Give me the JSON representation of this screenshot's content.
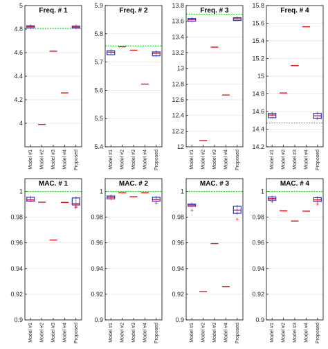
{
  "chart_data": [
    {
      "type": "box",
      "title": "Freq. # 1",
      "categories": [
        "Model #1",
        "Model #2",
        "Model #3",
        "Model #4",
        "Proposed"
      ],
      "ylim": [
        3.8,
        5
      ],
      "yticks": [
        "4",
        "4.2",
        "4.4",
        "4.6",
        "4.8",
        "5"
      ],
      "reference": 4.806,
      "series": [
        {
          "values": [
            4.822,
            3.99,
            4.612,
            4.258,
            4.818
          ],
          "box": [
            [
              4.812,
              4.828
            ],
            null,
            null,
            null,
            [
              4.81,
              4.826
            ]
          ],
          "outliers": [
            [],
            [],
            [],
            [],
            []
          ]
        }
      ],
      "grid": true
    },
    {
      "type": "box",
      "title": "Freq. # 2",
      "categories": [
        "Model #1",
        "Model #2",
        "Model #3",
        "Model #4",
        "Proposed"
      ],
      "ylim": [
        5.4,
        5.9
      ],
      "yticks": [
        "5.4",
        "5.5",
        "5.6",
        "5.7",
        "5.8",
        "5.9"
      ],
      "reference": 5.757,
      "series": [
        {
          "values": [
            5.735,
            5.754,
            5.742,
            5.622,
            5.731
          ],
          "box": [
            [
              5.726,
              5.74
            ],
            null,
            null,
            null,
            [
              5.722,
              5.736
            ]
          ],
          "outliers": [
            [],
            [],
            [],
            [],
            []
          ]
        }
      ],
      "grid": true
    },
    {
      "type": "box",
      "title": "Freq. # 3",
      "categories": [
        "Model #1",
        "Model #2",
        "Model #3",
        "Model #4",
        "Proposed"
      ],
      "ylim": [
        12,
        13.8
      ],
      "yticks": [
        "12",
        "12.2",
        "12.4",
        "12.6",
        "12.8",
        "13",
        "13.2",
        "13.4",
        "13.6",
        "13.8"
      ],
      "reference": 13.69,
      "series": [
        {
          "values": [
            13.62,
            12.08,
            13.27,
            12.66,
            13.63
          ],
          "box": [
            [
              13.6,
              13.635
            ],
            null,
            null,
            null,
            [
              13.61,
              13.645
            ]
          ],
          "outliers": [
            [],
            [],
            [],
            [],
            []
          ]
        }
      ],
      "grid": true
    },
    {
      "type": "box",
      "title": "Freq. # 4",
      "categories": [
        "Model #1",
        "Model #2",
        "Model #3",
        "Model #4",
        "Proposed"
      ],
      "ylim": [
        14.2,
        15.8
      ],
      "yticks": [
        "14.2",
        "14.4",
        "14.6",
        "14.8",
        "15",
        "15.2",
        "15.4",
        "15.6",
        "15.8"
      ],
      "reference": 14.47,
      "series": [
        {
          "values": [
            14.56,
            14.81,
            15.12,
            15.56,
            14.55
          ],
          "box": [
            [
              14.53,
              14.58
            ],
            null,
            null,
            null,
            [
              14.52,
              14.58
            ]
          ],
          "outliers": [
            [],
            [],
            [],
            [],
            []
          ]
        }
      ],
      "grid": true
    },
    {
      "type": "box",
      "title": "MAC. # 1",
      "categories": [
        "Model #1",
        "Model #2",
        "Model #3",
        "Model #4",
        "Proposed"
      ],
      "ylim": [
        0.9,
        1.01
      ],
      "yticks": [
        "0.9",
        "0.92",
        "0.94",
        "0.96",
        "0.98",
        "1"
      ],
      "reference": 1,
      "series": [
        {
          "values": [
            0.9935,
            0.9917,
            0.9622,
            0.9915,
            0.9905
          ],
          "box": [
            [
              0.9925,
              0.9955
            ],
            null,
            null,
            null,
            [
              0.9895,
              0.995
            ]
          ],
          "outliers": [
            [
              0.9935
            ],
            [],
            [],
            [],
            [
              0.9875,
              0.9882
            ]
          ]
        }
      ],
      "grid": true
    },
    {
      "type": "box",
      "title": "MAC. # 2",
      "categories": [
        "Model #1",
        "Model #2",
        "Model #3",
        "Model #4",
        "Proposed"
      ],
      "ylim": [
        0.9,
        1.01
      ],
      "yticks": [
        "0.9",
        "0.92",
        "0.94",
        "0.96",
        "0.98",
        "1"
      ],
      "reference": 1,
      "series": [
        {
          "values": [
            0.9955,
            0.999,
            0.996,
            0.999,
            0.9938
          ],
          "box": [
            [
              0.9943,
              0.9965
            ],
            null,
            null,
            null,
            [
              0.9925,
              0.9955
            ]
          ],
          "outliers": [
            [
              0.9945
            ],
            [],
            [],
            [],
            [
              0.9912
            ]
          ]
        }
      ],
      "grid": true
    },
    {
      "type": "box",
      "title": "MAC. # 3",
      "categories": [
        "Model #1",
        "Model #2",
        "Model #3",
        "Model #4",
        "Proposed"
      ],
      "ylim": [
        0.9,
        1.01
      ],
      "yticks": [
        "0.9",
        "0.92",
        "0.94",
        "0.96",
        "0.98",
        "1"
      ],
      "reference": 1,
      "series": [
        {
          "values": [
            0.9895,
            0.922,
            0.9595,
            0.926,
            0.9855
          ],
          "box": [
            [
              0.9885,
              0.9902
            ],
            null,
            null,
            null,
            [
              0.983,
              0.9885
            ]
          ],
          "outliers": [
            [
              0.9855
            ],
            [],
            [],
            [],
            [
              0.9785
            ]
          ]
        }
      ],
      "grid": true
    },
    {
      "type": "box",
      "title": "MAC. # 4",
      "categories": [
        "Model #1",
        "Model #2",
        "Model #3",
        "Model #4",
        "Proposed"
      ],
      "ylim": [
        0.9,
        1.01
      ],
      "yticks": [
        "0.9",
        "0.92",
        "0.94",
        "0.96",
        "0.98",
        "1"
      ],
      "reference": 1,
      "series": [
        {
          "values": [
            0.9945,
            0.985,
            0.977,
            0.9847,
            0.9935
          ],
          "box": [
            [
              0.9932,
              0.9958
            ],
            null,
            null,
            null,
            [
              0.9922,
              0.9952
            ]
          ],
          "outliers": [
            [
              0.9922
            ],
            [],
            [],
            [],
            [
              0.9902
            ]
          ]
        }
      ],
      "grid": true
    }
  ]
}
